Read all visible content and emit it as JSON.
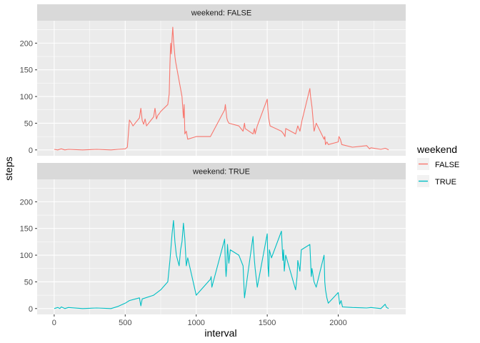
{
  "chart_data": {
    "type": "line",
    "xlabel": "interval",
    "ylabel": "steps",
    "xlim": [
      -120,
      2475
    ],
    "ylim": [
      -11,
      242
    ],
    "x_ticks": [
      0,
      500,
      1000,
      1500,
      2000
    ],
    "x_minor": [
      250,
      750,
      1250,
      1750,
      2250
    ],
    "y_ticks": [
      0,
      50,
      100,
      150,
      200
    ],
    "y_minor": [
      25,
      75,
      125,
      175,
      225
    ],
    "grid": true,
    "legend": {
      "title": "weekend",
      "position": "right",
      "entries": [
        {
          "label": "FALSE",
          "color": "#F8766D"
        },
        {
          "label": "TRUE",
          "color": "#00BFC4"
        }
      ]
    },
    "panels": [
      {
        "strip": "weekend: FALSE",
        "color": "#F8766D",
        "x": [
          0,
          25,
          50,
          75,
          100,
          200,
          300,
          400,
          450,
          500,
          515,
          530,
          545,
          555,
          600,
          610,
          620,
          630,
          640,
          650,
          700,
          710,
          720,
          730,
          740,
          750,
          800,
          810,
          815,
          820,
          825,
          830,
          835,
          840,
          845,
          850,
          855,
          900,
          910,
          915,
          920,
          930,
          940,
          1000,
          1100,
          1200,
          1205,
          1215,
          1220,
          1230,
          1300,
          1330,
          1340,
          1345,
          1400,
          1405,
          1410,
          1415,
          1420,
          1430,
          1500,
          1505,
          1510,
          1520,
          1600,
          1615,
          1625,
          1630,
          1700,
          1715,
          1730,
          1745,
          1800,
          1805,
          1815,
          1830,
          1845,
          1900,
          1905,
          1910,
          1920,
          1930,
          2000,
          2005,
          2015,
          2025,
          2100,
          2200,
          2220,
          2230,
          2300,
          2330,
          2340,
          2355
        ],
        "y": [
          1,
          0,
          2,
          0,
          1,
          0,
          1,
          0,
          1,
          2,
          5,
          56,
          50,
          45,
          60,
          78,
          55,
          48,
          58,
          45,
          62,
          78,
          58,
          65,
          68,
          72,
          85,
          105,
          160,
          200,
          180,
          210,
          230,
          205,
          190,
          175,
          165,
          100,
          60,
          85,
          30,
          35,
          20,
          25,
          25,
          75,
          85,
          60,
          55,
          50,
          45,
          35,
          50,
          40,
          30,
          35,
          40,
          30,
          35,
          45,
          95,
          75,
          60,
          45,
          35,
          30,
          25,
          40,
          30,
          45,
          35,
          55,
          115,
          100,
          80,
          35,
          50,
          20,
          25,
          10,
          15,
          10,
          15,
          25,
          20,
          10,
          5,
          8,
          2,
          4,
          1,
          3,
          2,
          0
        ]
      },
      {
        "strip": "weekend: TRUE",
        "color": "#00BFC4",
        "x": [
          0,
          25,
          40,
          50,
          75,
          100,
          200,
          300,
          400,
          450,
          500,
          530,
          600,
          610,
          620,
          700,
          750,
          800,
          815,
          830,
          840,
          850,
          860,
          880,
          890,
          900,
          910,
          920,
          930,
          940,
          1000,
          1100,
          1105,
          1110,
          1200,
          1205,
          1210,
          1215,
          1220,
          1230,
          1240,
          1300,
          1330,
          1340,
          1400,
          1405,
          1410,
          1415,
          1430,
          1500,
          1505,
          1510,
          1515,
          1530,
          1600,
          1610,
          1615,
          1620,
          1630,
          1700,
          1710,
          1715,
          1730,
          1740,
          1800,
          1810,
          1815,
          1830,
          1845,
          1900,
          1905,
          1910,
          1920,
          1930,
          2000,
          2010,
          2020,
          2030,
          2100,
          2200,
          2230,
          2300,
          2330,
          2340,
          2355
        ],
        "y": [
          0,
          2,
          0,
          3,
          0,
          2,
          0,
          1,
          0,
          4,
          10,
          15,
          20,
          5,
          18,
          25,
          35,
          50,
          90,
          140,
          165,
          125,
          100,
          80,
          110,
          125,
          160,
          130,
          80,
          95,
          25,
          55,
          60,
          40,
          130,
          85,
          60,
          80,
          120,
          85,
          110,
          100,
          80,
          20,
          135,
          110,
          90,
          75,
          40,
          140,
          80,
          60,
          110,
          95,
          145,
          90,
          110,
          70,
          100,
          35,
          60,
          90,
          70,
          110,
          120,
          60,
          75,
          50,
          40,
          100,
          50,
          35,
          20,
          10,
          30,
          8,
          15,
          3,
          2,
          1,
          2,
          0,
          8,
          2,
          0
        ]
      }
    ]
  }
}
